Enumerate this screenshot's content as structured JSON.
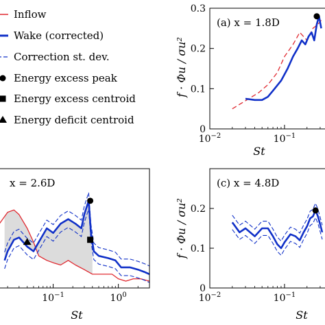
{
  "legend": {
    "items": [
      {
        "label": "Inflow",
        "style": "inflow"
      },
      {
        "label": "Wake (corrected)",
        "style": "wake"
      },
      {
        "label": "Correction st. dev.",
        "style": "stdev"
      },
      {
        "label": "Energy excess peak",
        "style": "peak"
      },
      {
        "label": "Energy excess centroid",
        "style": "excess"
      },
      {
        "label": "Energy deficit centroid",
        "style": "deficit"
      }
    ]
  },
  "colors": {
    "inflow": "#e0282f",
    "wake": "#1030c8",
    "stdev": "#1030c8",
    "shade": "#dcdcdc"
  },
  "chart_data": [
    {
      "panel": "a",
      "type": "line",
      "label": "(a) x = 1.8D",
      "xlabel": "St",
      "ylabel": "f · Φu / σu²",
      "xscale": "log",
      "xlim": [
        0.01,
        0.32
      ],
      "ylim": [
        0,
        0.3
      ],
      "xticks": [
        0.01,
        0.1
      ],
      "xticklabels": [
        "10^-2",
        "10^-1"
      ],
      "yticks": [
        0,
        0.1,
        0.2,
        0.3
      ],
      "yticklabels": [
        "0",
        "0.1",
        "0.2",
        "0.3"
      ],
      "series": [
        {
          "style": "inflow",
          "x": [
            0.02,
            0.03,
            0.045,
            0.06,
            0.08,
            0.1,
            0.13,
            0.16,
            0.2,
            0.24,
            0.28,
            0.31
          ],
          "y": [
            0.05,
            0.07,
            0.09,
            0.11,
            0.14,
            0.18,
            0.21,
            0.24,
            0.22,
            0.25,
            0.26,
            0.27
          ]
        },
        {
          "style": "wake",
          "x": [
            0.03,
            0.04,
            0.05,
            0.06,
            0.07,
            0.09,
            0.11,
            0.13,
            0.15,
            0.17,
            0.19,
            0.21,
            0.23,
            0.25,
            0.27,
            0.29,
            0.31
          ],
          "y": [
            0.075,
            0.072,
            0.072,
            0.08,
            0.095,
            0.12,
            0.15,
            0.18,
            0.2,
            0.22,
            0.21,
            0.23,
            0.24,
            0.22,
            0.26,
            0.28,
            0.25
          ]
        }
      ],
      "markers": [
        {
          "style": "peak",
          "x": 0.27,
          "y": 0.28
        }
      ]
    },
    {
      "panel": "b",
      "type": "line",
      "label": "x = 2.6D",
      "xlabel": "St",
      "xscale": "log",
      "xlim": [
        0.012,
        3.0
      ],
      "ylim": [
        0,
        0.26
      ],
      "xticks": [
        0.1,
        1
      ],
      "xticklabels": [
        "10^-1",
        "10^0"
      ],
      "series": [
        {
          "style": "inflow",
          "x": [
            0.012,
            0.015,
            0.02,
            0.025,
            0.03,
            0.04,
            0.05,
            0.06,
            0.08,
            0.1,
            0.13,
            0.17,
            0.22,
            0.3,
            0.4,
            0.6,
            0.8,
            1.0,
            1.3,
            1.7,
            2.2,
            3.0
          ],
          "y": [
            0.12,
            0.14,
            0.165,
            0.17,
            0.16,
            0.13,
            0.1,
            0.07,
            0.06,
            0.055,
            0.05,
            0.06,
            0.05,
            0.04,
            0.03,
            0.03,
            0.03,
            0.02,
            0.015,
            0.02,
            0.02,
            0.015
          ]
        },
        {
          "style": "wake",
          "x": [
            0.018,
            0.02,
            0.025,
            0.03,
            0.04,
            0.05,
            0.06,
            0.08,
            0.1,
            0.13,
            0.17,
            0.22,
            0.27,
            0.3,
            0.35,
            0.38,
            0.42,
            0.5,
            0.7,
            0.9,
            1.1,
            1.5,
            2.0,
            2.5,
            3.0
          ],
          "y": [
            0.06,
            0.08,
            0.105,
            0.11,
            0.09,
            0.08,
            0.1,
            0.13,
            0.12,
            0.14,
            0.15,
            0.14,
            0.13,
            0.16,
            0.19,
            0.12,
            0.08,
            0.07,
            0.065,
            0.06,
            0.045,
            0.045,
            0.04,
            0.035,
            0.03
          ]
        }
      ],
      "markers": [
        {
          "style": "peak",
          "x": 0.37,
          "y": 0.19
        },
        {
          "style": "excess",
          "x": 0.37,
          "y": 0.105
        },
        {
          "style": "deficit",
          "x": 0.04,
          "y": 0.1
        }
      ]
    },
    {
      "panel": "c",
      "type": "line",
      "label": "(c) x = 4.8D",
      "xlabel": "St",
      "ylabel": "f · Φu / σu²",
      "xscale": "log",
      "xlim": [
        0.01,
        0.32
      ],
      "ylim": [
        0,
        0.3
      ],
      "xticks": [
        0.01,
        0.1
      ],
      "xticklabels": [
        "10^-2",
        "10^-1"
      ],
      "yticks": [
        0,
        0.1,
        0.2
      ],
      "yticklabels": [
        "0",
        "0.1",
        "0.2"
      ],
      "series": [
        {
          "style": "wake",
          "x": [
            0.02,
            0.025,
            0.03,
            0.04,
            0.05,
            0.06,
            0.07,
            0.08,
            0.09,
            0.1,
            0.12,
            0.14,
            0.16,
            0.18,
            0.2,
            0.22,
            0.24,
            0.26,
            0.28,
            0.3,
            0.32
          ],
          "y": [
            0.165,
            0.14,
            0.15,
            0.13,
            0.15,
            0.15,
            0.13,
            0.11,
            0.1,
            0.115,
            0.135,
            0.13,
            0.12,
            0.14,
            0.155,
            0.175,
            0.18,
            0.195,
            0.18,
            0.16,
            0.14
          ]
        }
      ],
      "markers": [
        {
          "style": "peak",
          "x": 0.26,
          "y": 0.195
        }
      ]
    }
  ]
}
